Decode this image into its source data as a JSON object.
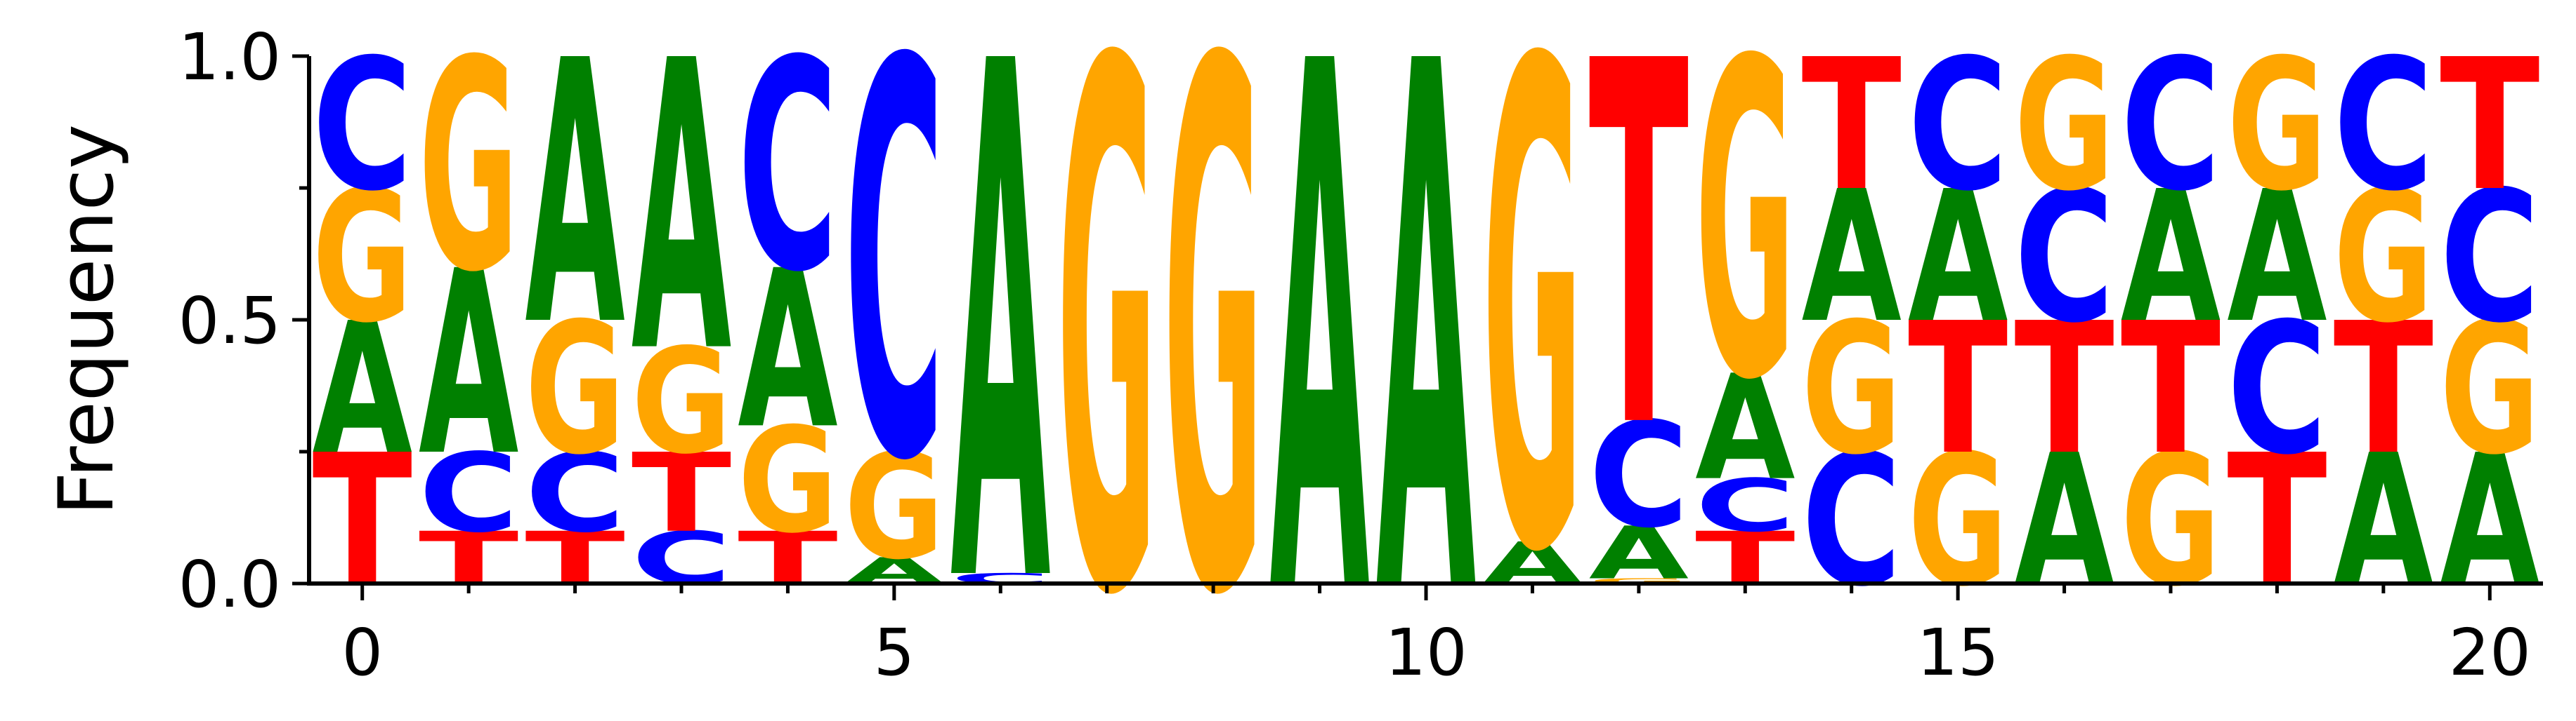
{
  "chart_data": {
    "type": "sequence-logo",
    "ylabel": "Frequency",
    "ylim": [
      0,
      1
    ],
    "xlim": [
      -0.5,
      20.5
    ],
    "yticks": [
      0.0,
      0.5,
      1.0
    ],
    "yticks_minor": [
      0.25,
      0.75
    ],
    "ytick_labels": [
      "0.0",
      "0.5",
      "1.0"
    ],
    "xticks": [
      0,
      5,
      10,
      15,
      20
    ],
    "xticks_minor": [
      1,
      2,
      3,
      4,
      6,
      7,
      8,
      9,
      11,
      12,
      13,
      14,
      16,
      17,
      18,
      19
    ],
    "xtick_labels": [
      "0",
      "5",
      "10",
      "15",
      "20"
    ],
    "colors": {
      "A": "#008000",
      "C": "#0000ff",
      "G": "#ffa500",
      "T": "#ff0000"
    },
    "positions": [
      {
        "x": 0,
        "stack": [
          [
            "T",
            0.25
          ],
          [
            "A",
            0.25
          ],
          [
            "G",
            0.25
          ],
          [
            "C",
            0.25
          ]
        ]
      },
      {
        "x": 1,
        "stack": [
          [
            "T",
            0.1
          ],
          [
            "C",
            0.15
          ],
          [
            "A",
            0.35
          ],
          [
            "G",
            0.4
          ]
        ]
      },
      {
        "x": 2,
        "stack": [
          [
            "T",
            0.1
          ],
          [
            "C",
            0.15
          ],
          [
            "G",
            0.25
          ],
          [
            "A",
            0.5
          ]
        ]
      },
      {
        "x": 3,
        "stack": [
          [
            "C",
            0.1
          ],
          [
            "T",
            0.15
          ],
          [
            "G",
            0.2
          ],
          [
            "A",
            0.55
          ]
        ]
      },
      {
        "x": 4,
        "stack": [
          [
            "T",
            0.1
          ],
          [
            "G",
            0.2
          ],
          [
            "A",
            0.3
          ],
          [
            "C",
            0.4
          ]
        ]
      },
      {
        "x": 5,
        "stack": [
          [
            "A",
            0.05
          ],
          [
            "G",
            0.2
          ],
          [
            "C",
            0.75
          ]
        ]
      },
      {
        "x": 6,
        "stack": [
          [
            "C",
            0.02
          ],
          [
            "A",
            0.98
          ]
        ]
      },
      {
        "x": 7,
        "stack": [
          [
            "G",
            1.0
          ]
        ]
      },
      {
        "x": 8,
        "stack": [
          [
            "G",
            1.0
          ]
        ]
      },
      {
        "x": 9,
        "stack": [
          [
            "A",
            1.0
          ]
        ]
      },
      {
        "x": 10,
        "stack": [
          [
            "A",
            1.0
          ]
        ]
      },
      {
        "x": 11,
        "stack": [
          [
            "A",
            0.08
          ],
          [
            "G",
            0.92
          ]
        ]
      },
      {
        "x": 12,
        "stack": [
          [
            "G",
            0.01
          ],
          [
            "A",
            0.1
          ],
          [
            "C",
            0.2
          ],
          [
            "T",
            0.69
          ]
        ]
      },
      {
        "x": 13,
        "stack": [
          [
            "T",
            0.1
          ],
          [
            "C",
            0.1
          ],
          [
            "A",
            0.2
          ],
          [
            "G",
            0.6
          ]
        ]
      },
      {
        "x": 14,
        "stack": [
          [
            "C",
            0.25
          ],
          [
            "G",
            0.25
          ],
          [
            "A",
            0.25
          ],
          [
            "T",
            0.25
          ]
        ]
      },
      {
        "x": 15,
        "stack": [
          [
            "G",
            0.25
          ],
          [
            "T",
            0.25
          ],
          [
            "A",
            0.25
          ],
          [
            "C",
            0.25
          ]
        ]
      },
      {
        "x": 16,
        "stack": [
          [
            "A",
            0.25
          ],
          [
            "T",
            0.25
          ],
          [
            "C",
            0.25
          ],
          [
            "G",
            0.25
          ]
        ]
      },
      {
        "x": 17,
        "stack": [
          [
            "G",
            0.25
          ],
          [
            "T",
            0.25
          ],
          [
            "A",
            0.25
          ],
          [
            "C",
            0.25
          ]
        ]
      },
      {
        "x": 18,
        "stack": [
          [
            "T",
            0.25
          ],
          [
            "C",
            0.25
          ],
          [
            "A",
            0.25
          ],
          [
            "G",
            0.25
          ]
        ]
      },
      {
        "x": 19,
        "stack": [
          [
            "A",
            0.25
          ],
          [
            "T",
            0.25
          ],
          [
            "G",
            0.25
          ],
          [
            "C",
            0.25
          ]
        ]
      },
      {
        "x": 20,
        "stack": [
          [
            "A",
            0.25
          ],
          [
            "G",
            0.25
          ],
          [
            "C",
            0.25
          ],
          [
            "T",
            0.25
          ]
        ]
      }
    ]
  }
}
